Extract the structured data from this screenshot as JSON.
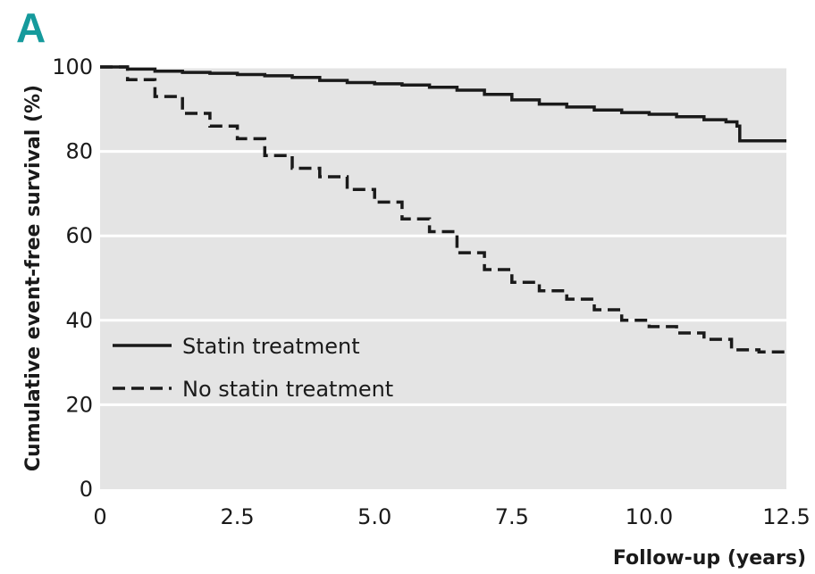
{
  "panel_label": "A",
  "colors": {
    "panel_label": "#159a9c",
    "plot_background": "#e4e4e4",
    "gridline": "#ffffff",
    "series_line": "#1a1a1a"
  },
  "chart_data": {
    "type": "line",
    "xlabel": "Follow-up (years)",
    "ylabel": "Cumulative event-free survival (%)",
    "xlim": [
      0,
      12.5
    ],
    "ylim": [
      0,
      100
    ],
    "x_ticks": [
      0,
      2.5,
      5.0,
      7.5,
      10.0,
      12.5
    ],
    "x_tick_labels": [
      "0",
      "2.5",
      "5.0",
      "7.5",
      "10.0",
      "12.5"
    ],
    "y_ticks": [
      0,
      20,
      40,
      60,
      80,
      100
    ],
    "y_tick_labels": [
      "0",
      "20",
      "40",
      "60",
      "80",
      "100"
    ],
    "grid": true,
    "legend_position": "lower-left",
    "series": [
      {
        "name": "Statin treatment",
        "style": "solid",
        "x": [
          0,
          0.5,
          1.0,
          1.5,
          2.0,
          2.5,
          3.0,
          3.5,
          4.0,
          4.5,
          5.0,
          5.5,
          6.0,
          6.5,
          7.0,
          7.5,
          8.0,
          8.5,
          9.0,
          9.5,
          10.0,
          10.5,
          11.0,
          11.4,
          11.6,
          11.65,
          12.0,
          12.5
        ],
        "y": [
          100,
          99.5,
          99,
          98.7,
          98.5,
          98.2,
          97.9,
          97.5,
          96.8,
          96.3,
          96,
          95.7,
          95.2,
          94.5,
          93.5,
          92.2,
          91.2,
          90.5,
          89.8,
          89.2,
          88.8,
          88.2,
          87.5,
          87,
          86,
          82.5,
          82.5,
          82.5
        ]
      },
      {
        "name": "No statin treatment",
        "style": "dashed",
        "x": [
          0,
          0.5,
          1.0,
          1.5,
          2.0,
          2.5,
          3.0,
          3.5,
          4.0,
          4.5,
          5.0,
          5.5,
          6.0,
          6.5,
          7.0,
          7.5,
          8.0,
          8.5,
          9.0,
          9.5,
          10.0,
          10.5,
          11.0,
          11.5,
          12.0,
          12.5
        ],
        "y": [
          100,
          97,
          93,
          89,
          86,
          83,
          79,
          76,
          74,
          71,
          68,
          64,
          61,
          56,
          52,
          49,
          47,
          45,
          42.5,
          40,
          38.5,
          37,
          35.5,
          33,
          32.5,
          32.5
        ]
      }
    ]
  }
}
